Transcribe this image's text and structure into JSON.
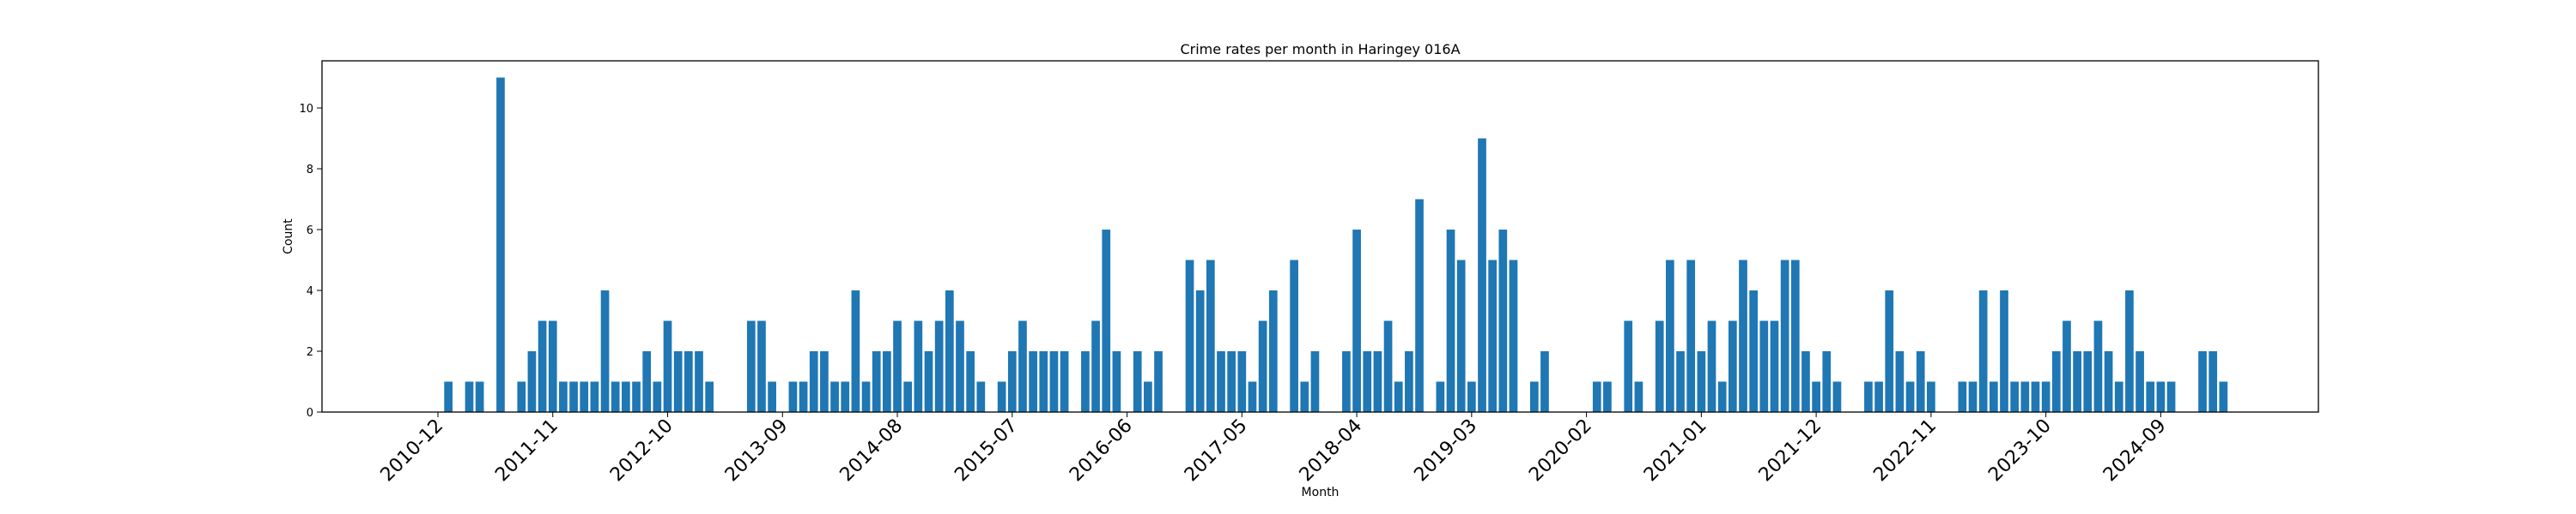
{
  "chart_data": {
    "type": "bar",
    "title": "Crime rates per month in Haringey 016A",
    "xlabel": "Month",
    "ylabel": "Count",
    "ylim": [
      0,
      11.55
    ],
    "yticks": [
      0,
      2,
      4,
      6,
      8,
      10
    ],
    "xtick_labels": [
      "2010-12",
      "2011-11",
      "2012-10",
      "2013-09",
      "2014-08",
      "2015-07",
      "2016-06",
      "2017-05",
      "2018-04",
      "2019-03",
      "2020-02",
      "2021-01",
      "2021-12",
      "2022-11",
      "2023-10",
      "2024-09"
    ],
    "start_month": "2010-12",
    "bar_color": "#1f77b4",
    "grid": false,
    "values": [
      0,
      1,
      0,
      1,
      1,
      0,
      11,
      0,
      1,
      2,
      3,
      3,
      1,
      1,
      1,
      1,
      4,
      1,
      1,
      1,
      2,
      1,
      3,
      2,
      2,
      2,
      1,
      0,
      0,
      0,
      3,
      3,
      1,
      0,
      1,
      1,
      2,
      2,
      1,
      1,
      4,
      1,
      2,
      2,
      3,
      1,
      3,
      2,
      3,
      4,
      3,
      2,
      1,
      0,
      1,
      2,
      3,
      2,
      2,
      2,
      2,
      0,
      2,
      3,
      6,
      2,
      0,
      2,
      1,
      2,
      0,
      0,
      5,
      4,
      5,
      2,
      2,
      2,
      1,
      3,
      4,
      0,
      5,
      1,
      2,
      0,
      0,
      2,
      6,
      2,
      2,
      3,
      1,
      2,
      7,
      0,
      1,
      6,
      5,
      1,
      9,
      5,
      6,
      5,
      0,
      1,
      2,
      0,
      0,
      0,
      0,
      1,
      1,
      0,
      3,
      1,
      0,
      3,
      5,
      2,
      5,
      2,
      3,
      1,
      3,
      5,
      4,
      3,
      3,
      5,
      5,
      2,
      1,
      2,
      1,
      0,
      0,
      1,
      1,
      4,
      2,
      1,
      2,
      1,
      0,
      0,
      1,
      1,
      4,
      1,
      4,
      1,
      1,
      1,
      1,
      2,
      3,
      2,
      2,
      3,
      2,
      1,
      4,
      2,
      1,
      1,
      1,
      0,
      0,
      2,
      2,
      1
    ]
  }
}
